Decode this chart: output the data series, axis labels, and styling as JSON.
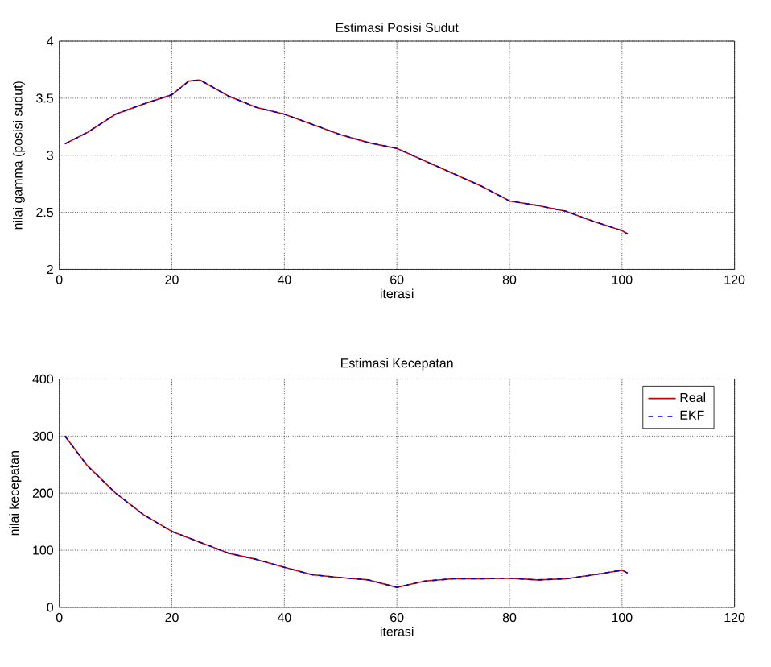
{
  "chart_data": [
    {
      "type": "line",
      "title": "Estimasi Posisi Sudut",
      "xlabel": "iterasi",
      "ylabel": "nilai gamma (posisi sudut)",
      "xlim": [
        0,
        120
      ],
      "xticks": [
        0,
        20,
        40,
        60,
        80,
        100,
        120
      ],
      "ylim": [
        2,
        4
      ],
      "yticks": [
        2,
        2.5,
        3,
        3.5,
        4
      ],
      "grid": true,
      "legend": false,
      "x": [
        1,
        5,
        10,
        15,
        20,
        23,
        25,
        30,
        35,
        40,
        45,
        50,
        55,
        60,
        65,
        70,
        75,
        80,
        85,
        90,
        95,
        100,
        101
      ],
      "series": [
        {
          "color": "#cc0000",
          "line_style": "solid",
          "values": [
            3.1,
            3.2,
            3.36,
            3.45,
            3.53,
            3.65,
            3.66,
            3.52,
            3.42,
            3.36,
            3.27,
            3.18,
            3.11,
            3.06,
            2.95,
            2.84,
            2.73,
            2.6,
            2.56,
            2.51,
            2.42,
            2.34,
            2.31
          ]
        },
        {
          "color": "#0000cc",
          "line_style": "dashed",
          "values": [
            3.1,
            3.2,
            3.36,
            3.45,
            3.53,
            3.65,
            3.66,
            3.52,
            3.42,
            3.36,
            3.27,
            3.18,
            3.11,
            3.06,
            2.95,
            2.84,
            2.73,
            2.6,
            2.56,
            2.51,
            2.42,
            2.34,
            2.31
          ]
        }
      ]
    },
    {
      "type": "line",
      "title": "Estimasi Kecepatan",
      "xlabel": "iterasi",
      "ylabel": "nilai kecepatan",
      "xlim": [
        0,
        120
      ],
      "xticks": [
        0,
        20,
        40,
        60,
        80,
        100,
        120
      ],
      "ylim": [
        0,
        400
      ],
      "yticks": [
        0,
        100,
        200,
        300,
        400
      ],
      "grid": true,
      "legend": "top right",
      "x": [
        1,
        5,
        10,
        15,
        20,
        25,
        30,
        35,
        40,
        45,
        50,
        55,
        60,
        65,
        70,
        75,
        80,
        85,
        90,
        95,
        100,
        101
      ],
      "series": [
        {
          "name": "Real",
          "color": "#cc0000",
          "line_style": "solid",
          "values": [
            300,
            248,
            200,
            162,
            133,
            114,
            95,
            84,
            70,
            57,
            52,
            48,
            35,
            46,
            50,
            50,
            51,
            48,
            50,
            57,
            65,
            60
          ]
        },
        {
          "name": "EKF",
          "color": "#0000cc",
          "line_style": "dashed",
          "values": [
            300,
            248,
            200,
            162,
            133,
            114,
            95,
            84,
            70,
            57,
            52,
            48,
            35,
            46,
            50,
            50,
            51,
            48,
            50,
            57,
            65,
            60
          ]
        }
      ]
    }
  ]
}
